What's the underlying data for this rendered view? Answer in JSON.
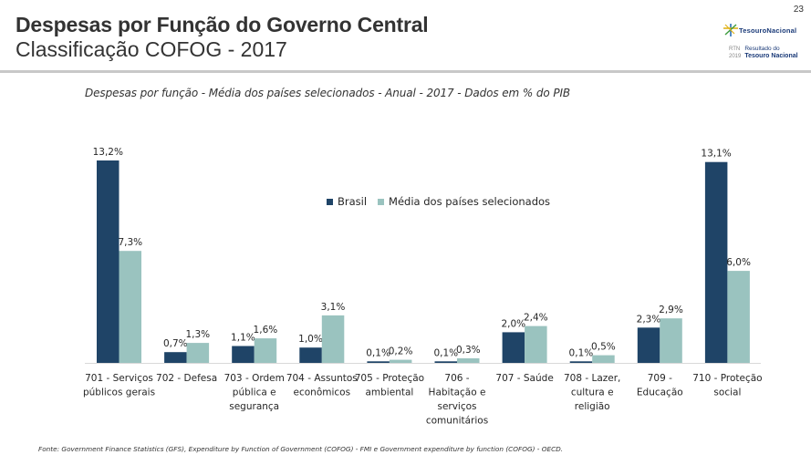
{
  "page_number": "23",
  "header": {
    "title": "Despesas por Função do Governo Central",
    "subtitle": "Classificação COFOG - 2017"
  },
  "logo": {
    "brand": "TesouroNacional",
    "rtn_label": "RTN",
    "rtn_year": "2019",
    "rtn_line1": "Resultado do",
    "rtn_line2": "Tesouro Nacional"
  },
  "footer": {
    "source": "Fonte: Government Finance Statistics (GFS), Expenditure by Function of Government (COFOG) - FMI e Government expenditure by function (COFOG) - OECD."
  },
  "colors": {
    "brasil": "#1f4467",
    "media": "#9ac3bf",
    "axis": "#d9d9d9"
  },
  "chart_data": {
    "type": "bar",
    "title": "Despesas por função - Média dos países selecionados - Anual - 2017 - Dados em % do PIB",
    "xlabel": "",
    "ylabel": "",
    "ylim": [
      0,
      13.2
    ],
    "grid": false,
    "legend_position": "top-center",
    "categories": [
      [
        "701 - Serviços",
        "públicos gerais"
      ],
      [
        "702 - Defesa"
      ],
      [
        "703 - Ordem",
        "pública e",
        "segurança"
      ],
      [
        "704 - Assuntos",
        "econômicos"
      ],
      [
        "705 - Proteção",
        "ambiental"
      ],
      [
        "706 -",
        "Habitação e",
        "serviços",
        "comunitários"
      ],
      [
        "707 - Saúde"
      ],
      [
        "708 - Lazer,",
        "cultura e",
        "religião"
      ],
      [
        "709 -",
        "Educação"
      ],
      [
        "710 - Proteção",
        "social"
      ]
    ],
    "series": [
      {
        "name": "Brasil",
        "values": [
          13.2,
          0.7,
          1.1,
          1.0,
          0.1,
          0.1,
          2.0,
          0.1,
          2.3,
          13.1
        ],
        "labels": [
          "13,2%",
          "0,7%",
          "1,1%",
          "1,0%",
          "0,1%",
          "0,1%",
          "2,0%",
          "0,1%",
          "2,3%",
          "13,1%"
        ]
      },
      {
        "name": "Média dos países selecionados",
        "values": [
          7.3,
          1.3,
          1.6,
          3.1,
          0.2,
          0.3,
          2.4,
          0.5,
          2.9,
          6.0
        ],
        "labels": [
          "7,3%",
          "1,3%",
          "1,6%",
          "3,1%",
          "0,2%",
          "0,3%",
          "2,4%",
          "0,5%",
          "2,9%",
          "6,0%"
        ]
      }
    ]
  }
}
